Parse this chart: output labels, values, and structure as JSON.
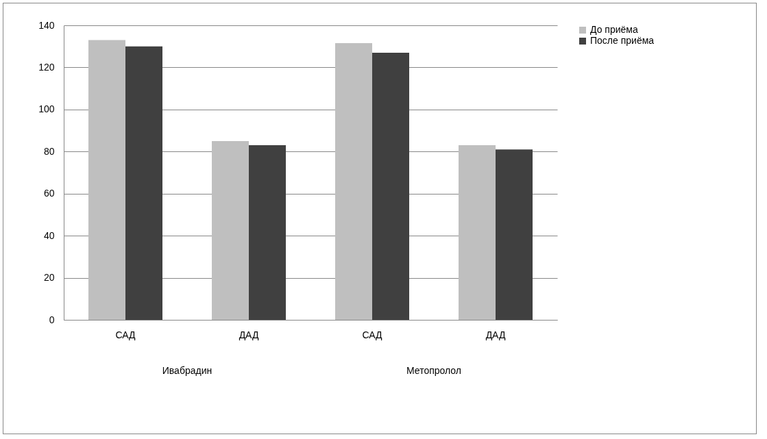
{
  "chart_data": {
    "type": "bar",
    "categories": [
      "САД",
      "ДАД",
      "САД",
      "ДАД"
    ],
    "series": [
      {
        "name": "До приёма",
        "color": "#bfbfbf",
        "values": [
          133,
          85,
          131.5,
          83
        ]
      },
      {
        "name": "После приёма",
        "color": "#404040",
        "values": [
          130,
          83,
          127,
          81
        ]
      }
    ],
    "ylim": [
      0,
      140
    ],
    "yticks": [
      0,
      20,
      40,
      60,
      80,
      100,
      120,
      140
    ],
    "grid": "y",
    "legend": "right",
    "annotations": [
      "Ивабрадин",
      "Метопролол"
    ]
  }
}
